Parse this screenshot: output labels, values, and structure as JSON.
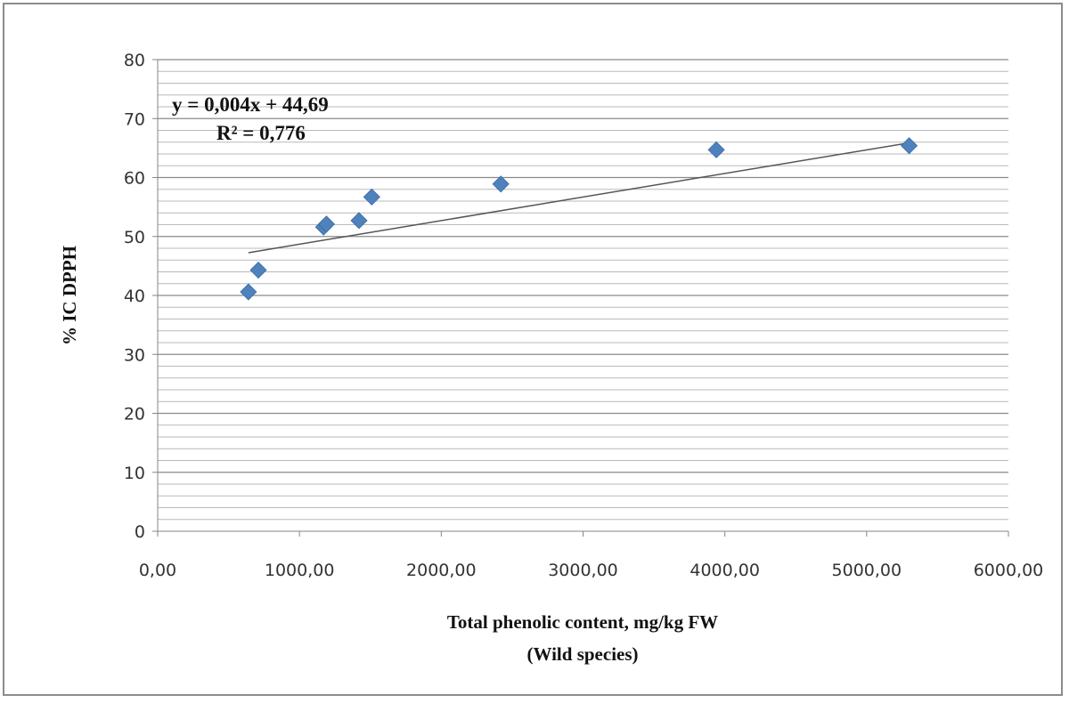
{
  "chart_data": {
    "type": "scatter",
    "xlabel": "Total phenolic content, mg/kg FW",
    "xlabel2": "(Wild species)",
    "ylabel": "% IC  DPPH",
    "xlim": [
      0,
      6000
    ],
    "ylim": [
      0,
      80
    ],
    "x_ticks": [
      "0,00",
      "1000,00",
      "2000,00",
      "3000,00",
      "4000,00",
      "5000,00",
      "6000,00"
    ],
    "x_tick_values": [
      0,
      1000,
      2000,
      3000,
      4000,
      5000,
      6000
    ],
    "y_ticks": [
      "0",
      "10",
      "20",
      "30",
      "40",
      "50",
      "60",
      "70",
      "80"
    ],
    "y_tick_values": [
      0,
      10,
      20,
      30,
      40,
      50,
      60,
      70,
      80
    ],
    "minor_gridline_step": 2,
    "grid": true,
    "series": [
      {
        "marker": "diamond",
        "color": "#4f81bd",
        "points": [
          {
            "x": 640,
            "y": 40.6
          },
          {
            "x": 710,
            "y": 44.3
          },
          {
            "x": 1170,
            "y": 51.6
          },
          {
            "x": 1190,
            "y": 52.1
          },
          {
            "x": 1420,
            "y": 52.7
          },
          {
            "x": 1510,
            "y": 56.7
          },
          {
            "x": 2420,
            "y": 58.9
          },
          {
            "x": 3940,
            "y": 64.7
          },
          {
            "x": 5300,
            "y": 65.4
          }
        ]
      }
    ],
    "trendline": {
      "type": "linear",
      "slope": 0.004,
      "intercept": 44.69,
      "x_range": [
        640,
        5300
      ],
      "color": "#555555",
      "equation_label": "y = 0,004x + 44,69",
      "r2_label": "R² = 0,776"
    }
  }
}
